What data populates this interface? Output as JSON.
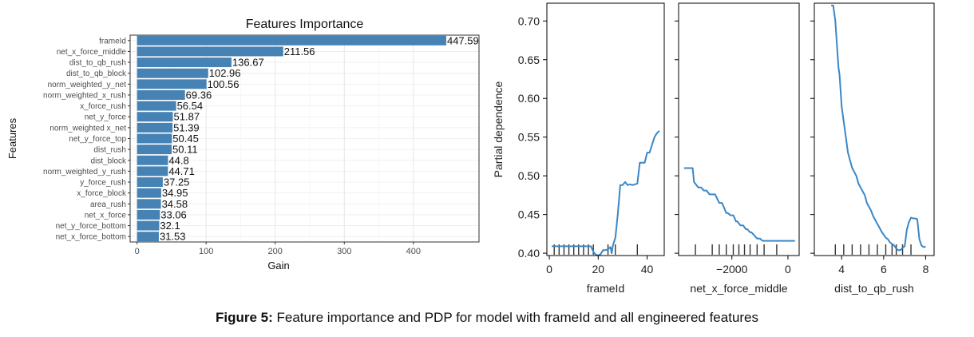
{
  "caption": {
    "label": "Figure 5:",
    "text": " Feature importance and PDP for model with frameId and all engineered features"
  },
  "chart_data": [
    {
      "type": "bar",
      "orientation": "horizontal",
      "title": "Features Importance",
      "xlabel": "Gain",
      "ylabel": "Features",
      "xlim": [
        -10,
        495
      ],
      "xticks": [
        0,
        100,
        200,
        300,
        400
      ],
      "grid": true,
      "color": "#4682b4",
      "categories": [
        "frameId",
        "net_x_force_middle",
        "dist_to_qb_rush",
        "dist_to_qb_block",
        "norm_weighted_y_net",
        "norm_weighted_x_rush",
        "x_force_rush",
        "net_y_force",
        "norm_weighted x_net",
        "net_y_force_top",
        "dist_rush",
        "dist_block",
        "norm_weighted_y_rush",
        "y_force_rush",
        "x_force_block",
        "area_rush",
        "net_x_force",
        "net_y_force_bottom",
        "net_x_force_bottom"
      ],
      "values": [
        447.59,
        211.56,
        136.67,
        102.96,
        100.56,
        69.36,
        56.54,
        51.87,
        51.39,
        50.45,
        50.11,
        44.8,
        44.71,
        37.25,
        34.95,
        34.58,
        33.06,
        32.1,
        31.53
      ],
      "labels": [
        "447.59",
        "211.56",
        "136.67",
        "102.96",
        "100.56",
        "69.36",
        "56.54",
        "51.87",
        "51.39",
        "50.45",
        "50.11",
        "44.8",
        "44.71",
        "37.25",
        "34.95",
        "34.58",
        "33.06",
        "32.1",
        "31.53"
      ]
    },
    {
      "type": "line",
      "ylabel": "Partial dependence",
      "ylim": [
        0.4,
        0.72
      ],
      "yticks": [
        "0.40",
        "0.45",
        "0.50",
        "0.55",
        "0.60",
        "0.65",
        "0.70"
      ],
      "yticks_values": [
        0.4,
        0.45,
        0.5,
        0.55,
        0.6,
        0.65,
        0.7
      ],
      "color": "#3a87c7",
      "panels": [
        {
          "xlabel": "frameId",
          "xlim": [
            -1,
            47
          ],
          "xticks": [
            "0",
            "20",
            "40"
          ],
          "xticks_values": [
            0,
            20,
            40
          ],
          "rug": [
            2,
            4,
            6,
            8,
            10,
            12,
            14,
            16,
            18,
            24,
            27,
            36
          ],
          "x": [
            1,
            3,
            5,
            7,
            9,
            11,
            13,
            15,
            17,
            18,
            19,
            20,
            21,
            22,
            23,
            24,
            25,
            25.5,
            26,
            27,
            28,
            29,
            30,
            31,
            32,
            33,
            34,
            35,
            36,
            37,
            38,
            39,
            40,
            41,
            42,
            43,
            44,
            45
          ],
          "y": [
            0.409,
            0.409,
            0.409,
            0.409,
            0.409,
            0.409,
            0.409,
            0.409,
            0.409,
            0.402,
            0.398,
            0.397,
            0.399,
            0.404,
            0.404,
            0.405,
            0.408,
            0.4,
            0.41,
            0.42,
            0.45,
            0.488,
            0.488,
            0.492,
            0.488,
            0.489,
            0.488,
            0.489,
            0.49,
            0.517,
            0.517,
            0.517,
            0.53,
            0.53,
            0.54,
            0.55,
            0.555,
            0.558
          ]
        },
        {
          "xlabel": "net_x_force_middle",
          "xlim": [
            -3900,
            400
          ],
          "xticks": [
            "−2000",
            "0"
          ],
          "xticks_values": [
            -2000,
            0
          ],
          "rug": [
            -3300,
            -2700,
            -2450,
            -2200,
            -1950,
            -1750,
            -1550,
            -1350,
            -1100,
            -850,
            -400
          ],
          "x": [
            -3700,
            -3400,
            -3350,
            -3200,
            -3100,
            -3000,
            -2900,
            -2800,
            -2700,
            -2600,
            -2450,
            -2350,
            -2200,
            -2150,
            -2050,
            -1950,
            -1850,
            -1800,
            -1700,
            -1600,
            -1500,
            -1450,
            -1350,
            -1300,
            -1200,
            -1100,
            -1000,
            -900,
            -700,
            -500,
            -300,
            -100,
            250
          ],
          "y": [
            0.51,
            0.51,
            0.492,
            0.485,
            0.485,
            0.481,
            0.481,
            0.476,
            0.476,
            0.476,
            0.465,
            0.465,
            0.452,
            0.452,
            0.449,
            0.449,
            0.441,
            0.441,
            0.436,
            0.436,
            0.431,
            0.431,
            0.427,
            0.427,
            0.423,
            0.419,
            0.419,
            0.416,
            0.416,
            0.416,
            0.416,
            0.416,
            0.416
          ]
        },
        {
          "xlabel": "dist_to_qb_rush",
          "xlim": [
            2.7,
            8.4
          ],
          "xticks": [
            "4",
            "6",
            "8"
          ],
          "xticks_values": [
            4,
            6,
            8
          ],
          "rug": [
            3.7,
            4.1,
            4.5,
            4.9,
            5.3,
            5.7,
            6.1,
            6.4,
            6.6,
            6.9,
            7.3
          ],
          "x": [
            3.5,
            3.6,
            3.7,
            3.75,
            3.8,
            3.85,
            3.9,
            3.95,
            4.0,
            4.1,
            4.2,
            4.3,
            4.4,
            4.5,
            4.6,
            4.7,
            4.8,
            4.9,
            5.0,
            5.1,
            5.2,
            5.3,
            5.4,
            5.5,
            5.6,
            5.7,
            5.8,
            5.9,
            6.0,
            6.1,
            6.2,
            6.3,
            6.4,
            6.5,
            6.6,
            6.7,
            6.8,
            6.9,
            7.0,
            7.1,
            7.2,
            7.3,
            7.4,
            7.5,
            7.6,
            7.7,
            7.8,
            7.9,
            8.0
          ],
          "y": [
            0.72,
            0.72,
            0.7,
            0.68,
            0.66,
            0.64,
            0.63,
            0.61,
            0.59,
            0.57,
            0.55,
            0.53,
            0.52,
            0.51,
            0.505,
            0.5,
            0.49,
            0.485,
            0.48,
            0.475,
            0.465,
            0.46,
            0.455,
            0.448,
            0.443,
            0.438,
            0.433,
            0.428,
            0.424,
            0.42,
            0.418,
            0.414,
            0.412,
            0.41,
            0.406,
            0.404,
            0.404,
            0.407,
            0.409,
            0.43,
            0.44,
            0.446,
            0.445,
            0.445,
            0.444,
            0.418,
            0.41,
            0.408,
            0.408
          ]
        }
      ]
    }
  ]
}
